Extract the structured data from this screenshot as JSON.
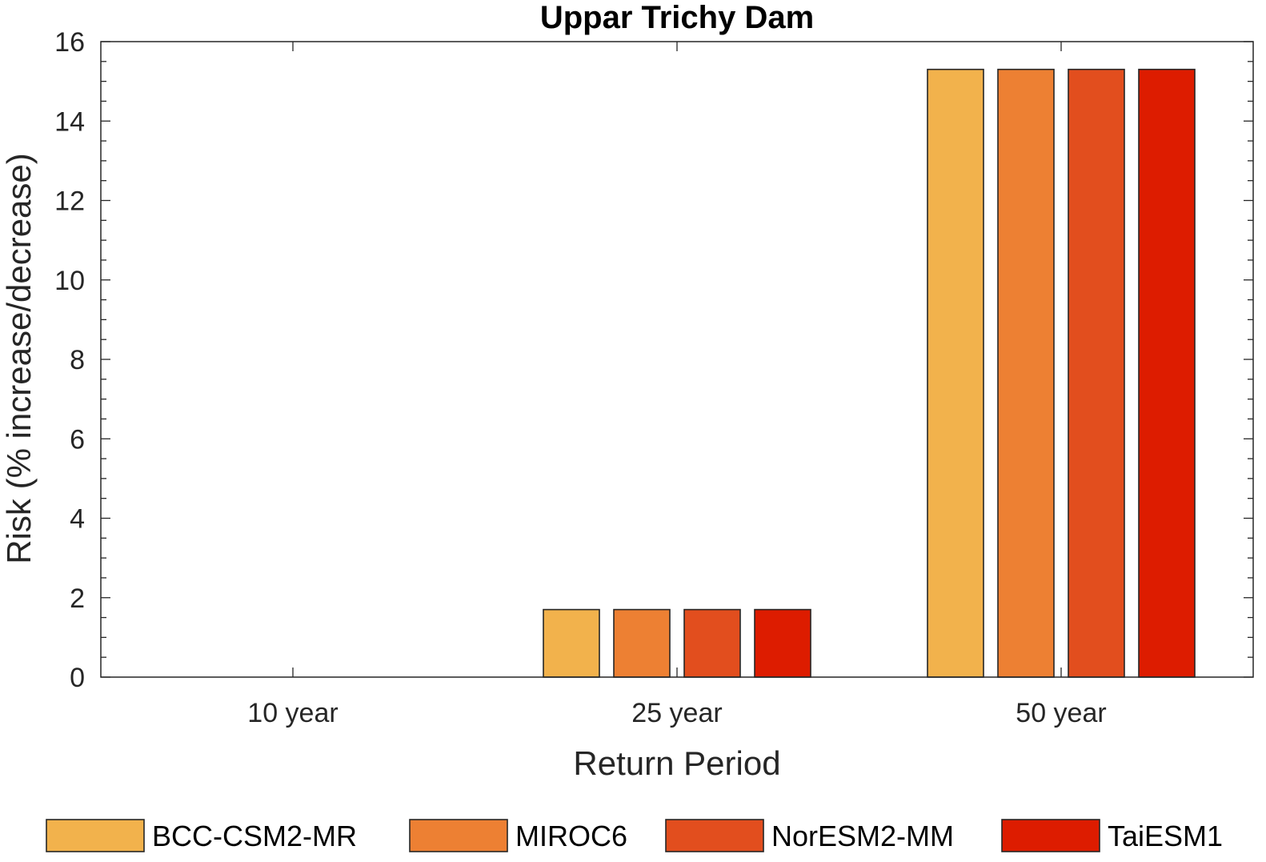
{
  "chart_data": {
    "type": "bar",
    "title": "Uppar Trichy Dam",
    "xlabel": "Return Period",
    "ylabel": "Risk (% increase/decrease)",
    "categories": [
      "10 year",
      "25 year",
      "50 year"
    ],
    "ylim": [
      0,
      16
    ],
    "yticks": [
      0,
      2,
      4,
      6,
      8,
      10,
      12,
      14,
      16
    ],
    "grid": false,
    "legend_placement": "bottom",
    "series": [
      {
        "name": "BCC-CSM2-MR",
        "color": "#F2B24C",
        "values": [
          0,
          1.7,
          15.3
        ]
      },
      {
        "name": "MIROC6",
        "color": "#ED8033",
        "values": [
          0,
          1.7,
          15.3
        ]
      },
      {
        "name": "NorESM2-MM",
        "color": "#E24E1E",
        "values": [
          0,
          1.7,
          15.3
        ]
      },
      {
        "name": "TaiESM1",
        "color": "#DD1C00",
        "values": [
          0,
          1.7,
          15.3
        ]
      }
    ]
  }
}
